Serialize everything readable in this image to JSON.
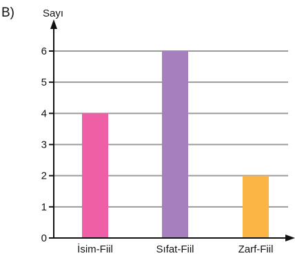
{
  "label": "B)",
  "chart_data": {
    "type": "bar",
    "title": "",
    "xlabel": "",
    "ylabel": "Sayı",
    "categories": [
      "İsim-Fiil",
      "Sıfat-Fiil",
      "Zarf-Fiil"
    ],
    "values": [
      4,
      6,
      2
    ],
    "colors": [
      "#ee5fa6",
      "#a680be",
      "#fbb545"
    ],
    "ylim": [
      0,
      6
    ],
    "yticks": [
      0,
      1,
      2,
      3,
      4,
      5,
      6
    ],
    "grid": true,
    "grid_color": "#9a9a9a",
    "axis_color": "#111111"
  }
}
